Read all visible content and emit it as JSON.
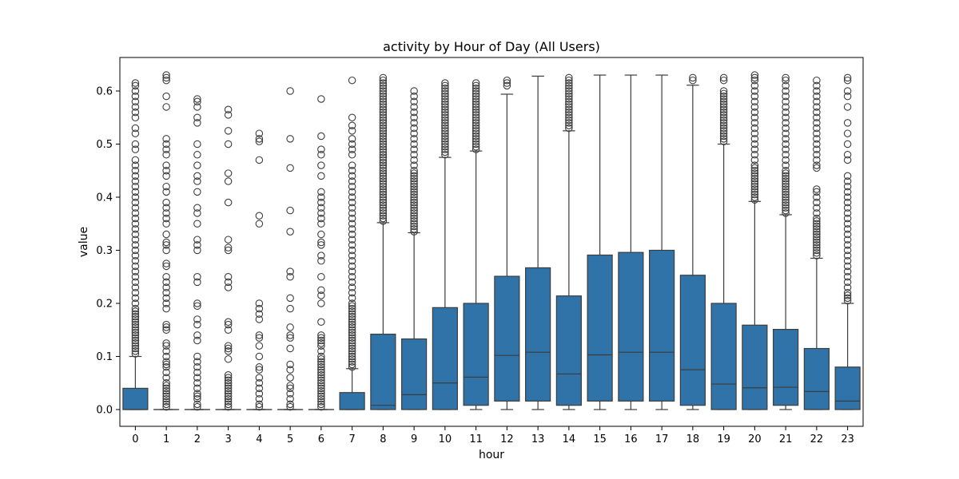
{
  "chart_data": {
    "type": "box",
    "title": "activity by Hour of Day (All Users)",
    "xlabel": "hour",
    "ylabel": "value",
    "ylim": [
      -0.03,
      0.66
    ],
    "yticks": [
      "0.0",
      "0.1",
      "0.2",
      "0.3",
      "0.4",
      "0.5",
      "0.6"
    ],
    "ytick_values": [
      0.0,
      0.1,
      0.2,
      0.3,
      0.4,
      0.5,
      0.6
    ],
    "categories": [
      "0",
      "1",
      "2",
      "3",
      "4",
      "5",
      "6",
      "7",
      "8",
      "9",
      "10",
      "11",
      "12",
      "13",
      "14",
      "15",
      "16",
      "17",
      "18",
      "19",
      "20",
      "21",
      "22",
      "23"
    ],
    "grid": false,
    "box_color": "#2f73a8",
    "edge_color": "#3d3d3d",
    "boxes": [
      {
        "q1": 0.0,
        "median": 0.0,
        "q3": 0.04,
        "whislo": 0.0,
        "whishi": 0.1,
        "outliers": [
          0.105,
          0.11,
          0.115,
          0.12,
          0.125,
          0.13,
          0.135,
          0.14,
          0.145,
          0.15,
          0.155,
          0.16,
          0.165,
          0.17,
          0.175,
          0.18,
          0.185,
          0.19,
          0.2,
          0.21,
          0.22,
          0.23,
          0.24,
          0.25,
          0.26,
          0.27,
          0.28,
          0.29,
          0.3,
          0.31,
          0.32,
          0.33,
          0.34,
          0.35,
          0.36,
          0.37,
          0.38,
          0.39,
          0.4,
          0.41,
          0.42,
          0.43,
          0.44,
          0.45,
          0.46,
          0.47,
          0.49,
          0.5,
          0.52,
          0.53,
          0.55,
          0.56,
          0.57,
          0.58,
          0.59,
          0.6,
          0.61,
          0.615
        ]
      },
      {
        "q1": 0.0,
        "median": 0.0,
        "q3": 0.0,
        "whislo": 0.0,
        "whishi": 0.0,
        "outliers": [
          0.005,
          0.01,
          0.015,
          0.02,
          0.025,
          0.03,
          0.035,
          0.04,
          0.045,
          0.05,
          0.06,
          0.07,
          0.08,
          0.085,
          0.09,
          0.1,
          0.11,
          0.12,
          0.125,
          0.15,
          0.155,
          0.16,
          0.19,
          0.2,
          0.21,
          0.22,
          0.23,
          0.24,
          0.25,
          0.27,
          0.275,
          0.3,
          0.31,
          0.315,
          0.33,
          0.35,
          0.36,
          0.37,
          0.38,
          0.39,
          0.41,
          0.42,
          0.44,
          0.45,
          0.46,
          0.48,
          0.49,
          0.5,
          0.51,
          0.57,
          0.59,
          0.62,
          0.625,
          0.63
        ]
      },
      {
        "q1": 0.0,
        "median": 0.0,
        "q3": 0.0,
        "whislo": 0.0,
        "whishi": 0.0,
        "outliers": [
          0.005,
          0.01,
          0.02,
          0.025,
          0.03,
          0.04,
          0.05,
          0.06,
          0.07,
          0.08,
          0.09,
          0.1,
          0.13,
          0.14,
          0.16,
          0.17,
          0.195,
          0.2,
          0.24,
          0.25,
          0.3,
          0.31,
          0.32,
          0.35,
          0.37,
          0.38,
          0.41,
          0.43,
          0.44,
          0.46,
          0.48,
          0.5,
          0.54,
          0.55,
          0.57,
          0.58,
          0.585
        ]
      },
      {
        "q1": 0.0,
        "median": 0.0,
        "q3": 0.0,
        "whislo": 0.0,
        "whishi": 0.0,
        "outliers": [
          0.005,
          0.01,
          0.015,
          0.02,
          0.025,
          0.03,
          0.035,
          0.04,
          0.045,
          0.05,
          0.055,
          0.06,
          0.065,
          0.095,
          0.11,
          0.115,
          0.12,
          0.15,
          0.16,
          0.165,
          0.23,
          0.24,
          0.25,
          0.3,
          0.305,
          0.32,
          0.39,
          0.43,
          0.445,
          0.5,
          0.525,
          0.555,
          0.565
        ]
      },
      {
        "q1": 0.0,
        "median": 0.0,
        "q3": 0.0,
        "whislo": 0.0,
        "whishi": 0.0,
        "outliers": [
          0.005,
          0.01,
          0.02,
          0.03,
          0.04,
          0.05,
          0.06,
          0.075,
          0.08,
          0.1,
          0.12,
          0.135,
          0.14,
          0.17,
          0.18,
          0.19,
          0.2,
          0.35,
          0.365,
          0.47,
          0.505,
          0.51,
          0.52
        ]
      },
      {
        "q1": 0.0,
        "median": 0.0,
        "q3": 0.0,
        "whislo": 0.0,
        "whishi": 0.0,
        "outliers": [
          0.005,
          0.01,
          0.02,
          0.03,
          0.04,
          0.045,
          0.06,
          0.075,
          0.085,
          0.115,
          0.135,
          0.14,
          0.155,
          0.19,
          0.21,
          0.25,
          0.26,
          0.335,
          0.375,
          0.455,
          0.51,
          0.6
        ]
      },
      {
        "q1": 0.0,
        "median": 0.0,
        "q3": 0.0,
        "whislo": 0.0,
        "whishi": 0.0,
        "outliers": [
          0.005,
          0.01,
          0.015,
          0.02,
          0.025,
          0.03,
          0.035,
          0.04,
          0.045,
          0.05,
          0.055,
          0.06,
          0.065,
          0.07,
          0.075,
          0.08,
          0.085,
          0.09,
          0.095,
          0.1,
          0.11,
          0.12,
          0.125,
          0.13,
          0.135,
          0.14,
          0.165,
          0.2,
          0.215,
          0.225,
          0.25,
          0.28,
          0.29,
          0.31,
          0.315,
          0.33,
          0.35,
          0.36,
          0.37,
          0.38,
          0.39,
          0.4,
          0.41,
          0.44,
          0.46,
          0.48,
          0.49,
          0.515,
          0.585
        ]
      },
      {
        "q1": 0.0,
        "median": 0.0,
        "q3": 0.032,
        "whislo": 0.0,
        "whishi": 0.077,
        "outliers": [
          0.08,
          0.085,
          0.09,
          0.095,
          0.1,
          0.105,
          0.11,
          0.115,
          0.12,
          0.125,
          0.13,
          0.135,
          0.14,
          0.145,
          0.15,
          0.155,
          0.16,
          0.165,
          0.17,
          0.175,
          0.18,
          0.185,
          0.19,
          0.195,
          0.2,
          0.21,
          0.22,
          0.23,
          0.24,
          0.25,
          0.26,
          0.27,
          0.28,
          0.29,
          0.3,
          0.31,
          0.32,
          0.33,
          0.34,
          0.35,
          0.36,
          0.37,
          0.38,
          0.39,
          0.4,
          0.41,
          0.42,
          0.43,
          0.44,
          0.45,
          0.46,
          0.48,
          0.49,
          0.5,
          0.51,
          0.525,
          0.535,
          0.55,
          0.62
        ]
      },
      {
        "q1": 0.0,
        "median": 0.008,
        "q3": 0.142,
        "whislo": 0.0,
        "whishi": 0.352,
        "outliers": [
          0.355,
          0.36,
          0.365,
          0.37,
          0.375,
          0.38,
          0.385,
          0.39,
          0.395,
          0.4,
          0.405,
          0.41,
          0.415,
          0.42,
          0.425,
          0.43,
          0.435,
          0.44,
          0.445,
          0.45,
          0.455,
          0.46,
          0.465,
          0.47,
          0.475,
          0.48,
          0.485,
          0.49,
          0.495,
          0.5,
          0.505,
          0.51,
          0.515,
          0.52,
          0.525,
          0.53,
          0.535,
          0.54,
          0.545,
          0.55,
          0.555,
          0.56,
          0.565,
          0.57,
          0.575,
          0.58,
          0.585,
          0.59,
          0.595,
          0.6,
          0.605,
          0.61,
          0.615,
          0.62,
          0.625
        ]
      },
      {
        "q1": 0.0,
        "median": 0.028,
        "q3": 0.133,
        "whislo": 0.0,
        "whishi": 0.333,
        "outliers": [
          0.335,
          0.34,
          0.345,
          0.35,
          0.355,
          0.36,
          0.365,
          0.37,
          0.375,
          0.38,
          0.385,
          0.39,
          0.395,
          0.4,
          0.405,
          0.41,
          0.415,
          0.42,
          0.425,
          0.43,
          0.435,
          0.44,
          0.445,
          0.45,
          0.46,
          0.47,
          0.48,
          0.49,
          0.5,
          0.51,
          0.52,
          0.53,
          0.54,
          0.55,
          0.56,
          0.57,
          0.58,
          0.59,
          0.6
        ]
      },
      {
        "q1": 0.0,
        "median": 0.05,
        "q3": 0.192,
        "whislo": 0.0,
        "whishi": 0.475,
        "outliers": [
          0.48,
          0.485,
          0.49,
          0.495,
          0.5,
          0.505,
          0.51,
          0.515,
          0.52,
          0.525,
          0.53,
          0.535,
          0.54,
          0.545,
          0.55,
          0.555,
          0.56,
          0.565,
          0.57,
          0.575,
          0.58,
          0.585,
          0.59,
          0.595,
          0.6,
          0.605,
          0.61,
          0.615
        ]
      },
      {
        "q1": 0.008,
        "median": 0.061,
        "q3": 0.2,
        "whislo": 0.0,
        "whishi": 0.487,
        "outliers": [
          0.49,
          0.495,
          0.5,
          0.505,
          0.51,
          0.515,
          0.52,
          0.525,
          0.53,
          0.535,
          0.54,
          0.545,
          0.55,
          0.555,
          0.56,
          0.565,
          0.57,
          0.575,
          0.58,
          0.585,
          0.59,
          0.595,
          0.6,
          0.605,
          0.61,
          0.615
        ]
      },
      {
        "q1": 0.016,
        "median": 0.102,
        "q3": 0.251,
        "whislo": 0.0,
        "whishi": 0.594,
        "outliers": [
          0.61,
          0.615,
          0.62
        ]
      },
      {
        "q1": 0.016,
        "median": 0.108,
        "q3": 0.267,
        "whislo": 0.0,
        "whishi": 0.628,
        "outliers": []
      },
      {
        "q1": 0.008,
        "median": 0.067,
        "q3": 0.214,
        "whislo": 0.0,
        "whishi": 0.525,
        "outliers": [
          0.53,
          0.535,
          0.54,
          0.545,
          0.55,
          0.555,
          0.56,
          0.565,
          0.57,
          0.575,
          0.58,
          0.585,
          0.59,
          0.595,
          0.6,
          0.605,
          0.61,
          0.615,
          0.62,
          0.625
        ]
      },
      {
        "q1": 0.016,
        "median": 0.103,
        "q3": 0.291,
        "whislo": 0.0,
        "whishi": 0.63,
        "outliers": []
      },
      {
        "q1": 0.016,
        "median": 0.108,
        "q3": 0.296,
        "whislo": 0.0,
        "whishi": 0.63,
        "outliers": []
      },
      {
        "q1": 0.016,
        "median": 0.108,
        "q3": 0.3,
        "whislo": 0.0,
        "whishi": 0.63,
        "outliers": []
      },
      {
        "q1": 0.008,
        "median": 0.075,
        "q3": 0.253,
        "whislo": 0.0,
        "whishi": 0.611,
        "outliers": [
          0.62,
          0.625
        ]
      },
      {
        "q1": 0.0,
        "median": 0.048,
        "q3": 0.2,
        "whislo": 0.0,
        "whishi": 0.5,
        "outliers": [
          0.505,
          0.51,
          0.515,
          0.52,
          0.525,
          0.53,
          0.535,
          0.54,
          0.545,
          0.55,
          0.555,
          0.56,
          0.565,
          0.57,
          0.575,
          0.58,
          0.585,
          0.59,
          0.595,
          0.6,
          0.62,
          0.625
        ]
      },
      {
        "q1": 0.0,
        "median": 0.041,
        "q3": 0.159,
        "whislo": 0.0,
        "whishi": 0.392,
        "outliers": [
          0.395,
          0.4,
          0.405,
          0.41,
          0.415,
          0.42,
          0.425,
          0.43,
          0.435,
          0.44,
          0.445,
          0.45,
          0.455,
          0.46,
          0.47,
          0.48,
          0.49,
          0.5,
          0.51,
          0.52,
          0.53,
          0.54,
          0.55,
          0.56,
          0.57,
          0.58,
          0.59,
          0.6,
          0.61,
          0.62,
          0.625,
          0.63
        ]
      },
      {
        "q1": 0.008,
        "median": 0.042,
        "q3": 0.151,
        "whislo": 0.0,
        "whishi": 0.367,
        "outliers": [
          0.37,
          0.375,
          0.38,
          0.385,
          0.39,
          0.395,
          0.4,
          0.405,
          0.41,
          0.415,
          0.42,
          0.425,
          0.43,
          0.435,
          0.44,
          0.445,
          0.45,
          0.46,
          0.47,
          0.48,
          0.49,
          0.5,
          0.51,
          0.52,
          0.53,
          0.54,
          0.55,
          0.56,
          0.57,
          0.58,
          0.59,
          0.6,
          0.61,
          0.62,
          0.625
        ]
      },
      {
        "q1": 0.0,
        "median": 0.034,
        "q3": 0.115,
        "whislo": 0.0,
        "whishi": 0.285,
        "outliers": [
          0.29,
          0.295,
          0.3,
          0.305,
          0.31,
          0.315,
          0.32,
          0.325,
          0.33,
          0.335,
          0.34,
          0.345,
          0.35,
          0.355,
          0.36,
          0.37,
          0.38,
          0.39,
          0.4,
          0.41,
          0.415,
          0.455,
          0.46,
          0.47,
          0.48,
          0.49,
          0.5,
          0.51,
          0.52,
          0.53,
          0.54,
          0.55,
          0.56,
          0.57,
          0.58,
          0.59,
          0.6,
          0.61,
          0.62
        ]
      },
      {
        "q1": 0.0,
        "median": 0.016,
        "q3": 0.08,
        "whislo": 0.0,
        "whishi": 0.2,
        "outliers": [
          0.205,
          0.21,
          0.215,
          0.22,
          0.23,
          0.24,
          0.25,
          0.26,
          0.27,
          0.28,
          0.29,
          0.3,
          0.31,
          0.32,
          0.33,
          0.34,
          0.35,
          0.36,
          0.37,
          0.38,
          0.39,
          0.4,
          0.41,
          0.42,
          0.43,
          0.44,
          0.47,
          0.48,
          0.5,
          0.52,
          0.54,
          0.57,
          0.59,
          0.6,
          0.62,
          0.625
        ]
      }
    ]
  }
}
